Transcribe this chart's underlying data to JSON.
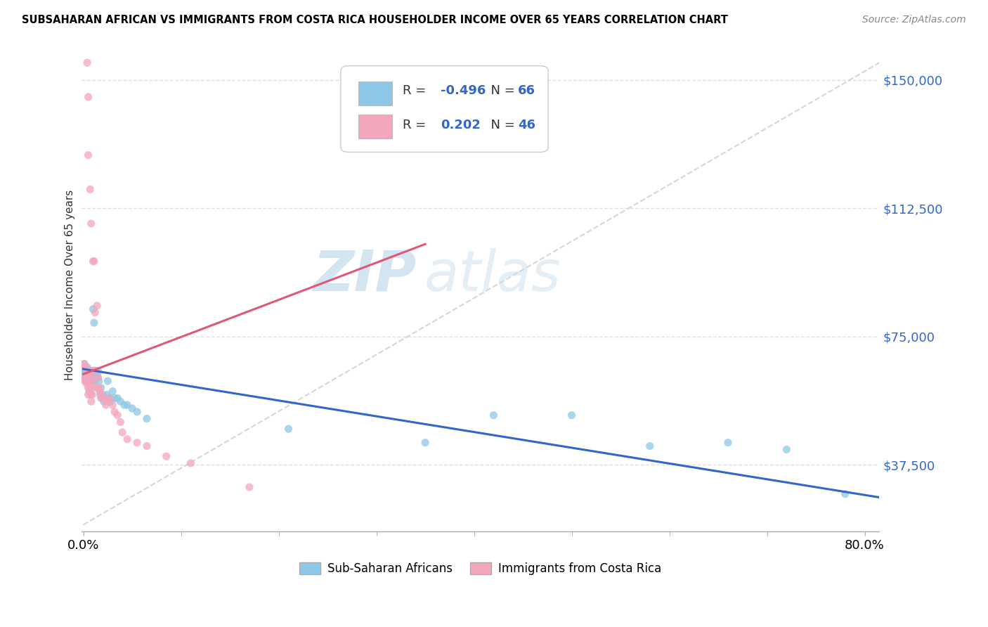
{
  "title": "SUBSAHARAN AFRICAN VS IMMIGRANTS FROM COSTA RICA HOUSEHOLDER INCOME OVER 65 YEARS CORRELATION CHART",
  "source": "Source: ZipAtlas.com",
  "ylabel": "Householder Income Over 65 years",
  "ytick_labels": [
    "$150,000",
    "$112,500",
    "$75,000",
    "$37,500"
  ],
  "ytick_values": [
    150000,
    112500,
    75000,
    37500
  ],
  "ylim": [
    18000,
    162000
  ],
  "xlim": [
    -0.002,
    0.815
  ],
  "R_blue": -0.496,
  "N_blue": 66,
  "R_pink": 0.202,
  "N_pink": 46,
  "blue_color": "#8ec8e8",
  "pink_color": "#f4a6bc",
  "blue_line_color": "#3366cc",
  "pink_line_color": "#e05878",
  "diag_color": "#cccccc",
  "watermark_color": "#d0e8f5",
  "legend_label_blue": "Sub-Saharan Africans",
  "legend_label_pink": "Immigrants from Costa Rica",
  "blue_scatter_x": [
    0.001,
    0.001,
    0.002,
    0.002,
    0.002,
    0.003,
    0.003,
    0.003,
    0.004,
    0.004,
    0.004,
    0.005,
    0.005,
    0.005,
    0.005,
    0.006,
    0.006,
    0.006,
    0.006,
    0.007,
    0.007,
    0.007,
    0.008,
    0.008,
    0.008,
    0.009,
    0.009,
    0.01,
    0.01,
    0.01,
    0.011,
    0.011,
    0.012,
    0.012,
    0.013,
    0.014,
    0.015,
    0.015,
    0.016,
    0.017,
    0.018,
    0.019,
    0.02,
    0.021,
    0.022,
    0.024,
    0.025,
    0.027,
    0.028,
    0.03,
    0.032,
    0.035,
    0.038,
    0.042,
    0.045,
    0.05,
    0.055,
    0.065,
    0.21,
    0.35,
    0.42,
    0.5,
    0.58,
    0.66,
    0.72,
    0.78
  ],
  "blue_scatter_y": [
    67000,
    65000,
    66000,
    64000,
    63000,
    65000,
    64000,
    62000,
    66000,
    64000,
    62000,
    65000,
    64000,
    63000,
    62000,
    65000,
    64000,
    63000,
    62000,
    64000,
    63000,
    62000,
    65000,
    63000,
    62000,
    64000,
    62000,
    83000,
    65000,
    62000,
    79000,
    63000,
    65000,
    62000,
    63000,
    64000,
    65000,
    63000,
    62000,
    58000,
    60000,
    57000,
    58000,
    56000,
    57000,
    58000,
    62000,
    57000,
    56000,
    59000,
    57000,
    57000,
    56000,
    55000,
    55000,
    54000,
    53000,
    51000,
    48000,
    44000,
    52000,
    52000,
    43000,
    44000,
    42000,
    29000
  ],
  "pink_scatter_x": [
    0.001,
    0.001,
    0.002,
    0.002,
    0.003,
    0.003,
    0.004,
    0.004,
    0.005,
    0.005,
    0.005,
    0.006,
    0.006,
    0.007,
    0.007,
    0.008,
    0.008,
    0.008,
    0.009,
    0.009,
    0.01,
    0.01,
    0.011,
    0.012,
    0.013,
    0.014,
    0.015,
    0.016,
    0.017,
    0.018,
    0.019,
    0.021,
    0.023,
    0.025,
    0.027,
    0.03,
    0.032,
    0.035,
    0.038,
    0.04,
    0.045,
    0.055,
    0.065,
    0.085,
    0.11,
    0.17
  ],
  "pink_scatter_y": [
    67000,
    62000,
    66000,
    63000,
    65000,
    62000,
    64000,
    61000,
    63000,
    60000,
    58000,
    62000,
    59000,
    65000,
    60000,
    63000,
    58000,
    56000,
    62000,
    58000,
    65000,
    60000,
    97000,
    82000,
    65000,
    60000,
    63000,
    60000,
    59000,
    57000,
    58000,
    57000,
    55000,
    56000,
    57000,
    55000,
    53000,
    52000,
    50000,
    47000,
    45000,
    44000,
    43000,
    40000,
    38000,
    31000
  ],
  "pink_high_x": [
    0.004,
    0.005,
    0.005,
    0.007,
    0.008,
    0.01,
    0.014
  ],
  "pink_high_y": [
    155000,
    145000,
    128000,
    118000,
    108000,
    97000,
    84000
  ]
}
